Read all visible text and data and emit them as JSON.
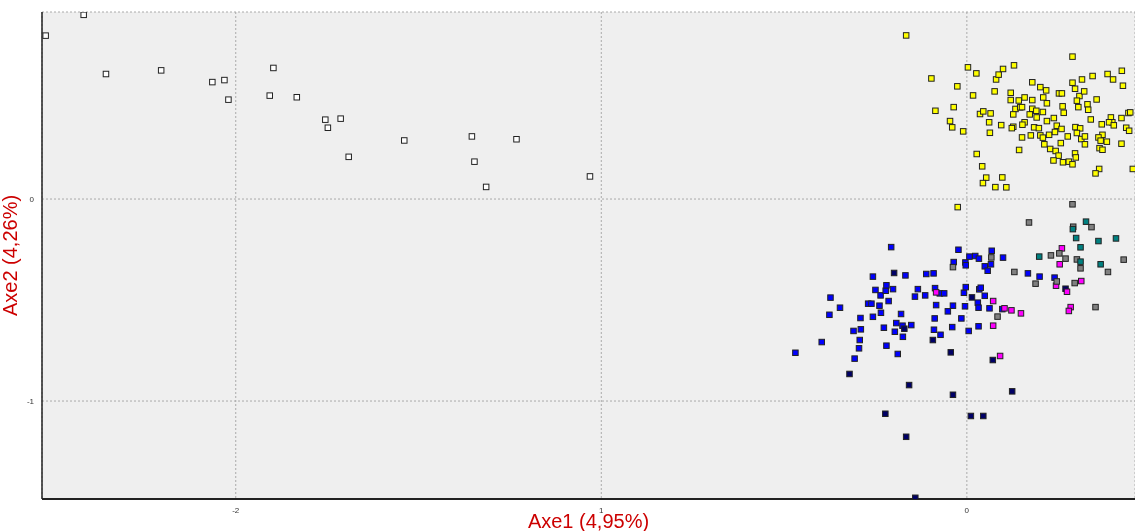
{
  "chart_data": {
    "type": "scatter",
    "xlabel": "Axe1 (4,95%)",
    "ylabel": "Axe2 (4,26%)",
    "xlim": [
      -2.53,
      0.46
    ],
    "ylim": [
      -1.485,
      0.926
    ],
    "xticks": [
      -2,
      {
        "value": -1,
        "label": "1"
      },
      0
    ],
    "yticks": [
      -1,
      0
    ],
    "grid": true,
    "marker": "square",
    "series": [
      {
        "color": "#ffffff",
        "x": [
          -2.52,
          -2.416,
          -2.355,
          -2.204,
          -2.064,
          -2.031,
          -2.02,
          -1.897,
          -1.907,
          -1.833,
          -1.755,
          -1.748,
          -1.713,
          -1.691,
          -1.539,
          -1.354,
          -1.347,
          -1.315,
          -1.232,
          -1.031
        ],
        "values": [
          0.809,
          0.912,
          0.619,
          0.637,
          0.579,
          0.589,
          0.492,
          0.649,
          0.512,
          0.504,
          0.393,
          0.353,
          0.398,
          0.209,
          0.29,
          0.31,
          0.185,
          0.06,
          0.296,
          0.112
        ]
      },
      {
        "color": "#ffff00",
        "x": [
          -0.166,
          -0.097,
          -0.086,
          -0.026,
          -0.036,
          -0.046,
          -0.04,
          -0.01,
          0.003,
          0.026,
          0.017,
          0.08,
          0.087,
          0.099,
          0.129,
          0.076,
          0.036,
          0.045,
          0.065,
          0.061,
          0.063,
          0.094,
          0.027,
          0.042,
          0.053,
          0.044,
          0.078,
          0.097,
          0.108,
          0.12,
          0.12,
          0.142,
          0.158,
          0.179,
          0.179,
          0.133,
          0.146,
          0.151,
          0.127,
          0.127,
          0.123,
          0.158,
          0.152,
          0.172,
          0.179,
          0.19,
          0.191,
          0.201,
          0.217,
          0.209,
          0.219,
          0.208,
          0.219,
          0.238,
          0.184,
          0.197,
          0.151,
          0.143,
          0.175,
          0.201,
          0.208,
          0.212,
          0.225,
          0.241,
          0.246,
          0.259,
          0.228,
          0.243,
          0.251,
          0.237,
          0.257,
          0.276,
          0.263,
          0.279,
          0.289,
          0.296,
          0.298,
          0.252,
          0.26,
          0.262,
          0.265,
          0.289,
          0.289,
          0.296,
          0.308,
          0.301,
          0.305,
          0.315,
          0.321,
          0.344,
          0.33,
          0.332,
          0.355,
          0.339,
          0.297,
          0.31,
          0.301,
          0.313,
          0.323,
          0.323,
          0.385,
          0.4,
          0.424,
          0.427,
          0.369,
          0.371,
          0.36,
          0.366,
          0.383,
          0.363,
          0.371,
          0.362,
          0.352,
          0.394,
          0.398,
          0.389,
          0.402,
          0.423,
          0.442,
          0.447,
          0.436,
          0.444,
          0.423,
          0.454,
          -0.025
        ],
        "values": [
          0.81,
          0.597,
          0.437,
          0.558,
          0.455,
          0.386,
          0.355,
          0.335,
          0.652,
          0.622,
          0.513,
          0.592,
          0.616,
          0.644,
          0.662,
          0.533,
          0.421,
          0.434,
          0.424,
          0.38,
          0.328,
          0.366,
          0.223,
          0.162,
          0.106,
          0.079,
          0.059,
          0.107,
          0.058,
          0.526,
          0.49,
          0.488,
          0.503,
          0.578,
          0.49,
          0.446,
          0.454,
          0.455,
          0.419,
          0.358,
          0.351,
          0.38,
          0.368,
          0.419,
          0.447,
          0.437,
          0.404,
          0.554,
          0.538,
          0.503,
          0.474,
          0.431,
          0.386,
          0.401,
          0.355,
          0.351,
          0.305,
          0.243,
          0.315,
          0.315,
          0.304,
          0.271,
          0.318,
          0.332,
          0.363,
          0.347,
          0.248,
          0.238,
          0.215,
          0.191,
          0.277,
          0.31,
          0.182,
          0.185,
          0.172,
          0.226,
          0.206,
          0.523,
          0.523,
          0.459,
          0.427,
          0.705,
          0.576,
          0.546,
          0.51,
          0.487,
          0.455,
          0.592,
          0.533,
          0.609,
          0.469,
          0.442,
          0.493,
          0.394,
          0.356,
          0.35,
          0.327,
          0.297,
          0.31,
          0.271,
          0.619,
          0.592,
          0.635,
          0.561,
          0.37,
          0.318,
          0.305,
          0.289,
          0.284,
          0.252,
          0.244,
          0.149,
          0.127,
          0.404,
          0.38,
          0.38,
          0.365,
          0.401,
          0.426,
          0.429,
          0.353,
          0.338,
          0.274,
          0.149,
          -0.04
        ]
      },
      {
        "color": "#0000ff",
        "x": [
          -0.469,
          -0.397,
          -0.376,
          -0.373,
          -0.347,
          -0.31,
          -0.307,
          -0.295,
          -0.293,
          -0.291,
          -0.29,
          -0.27,
          -0.261,
          -0.257,
          -0.257,
          -0.25,
          -0.239,
          -0.236,
          -0.235,
          -0.227,
          -0.222,
          -0.22,
          -0.22,
          -0.214,
          -0.207,
          -0.202,
          -0.197,
          -0.193,
          -0.189,
          -0.18,
          -0.176,
          -0.175,
          -0.168,
          -0.152,
          -0.142,
          -0.134,
          -0.114,
          -0.111,
          -0.091,
          -0.09,
          -0.088,
          -0.087,
          -0.084,
          -0.074,
          -0.072,
          -0.062,
          -0.052,
          -0.04,
          -0.038,
          -0.036,
          -0.023,
          -0.015,
          -0.008,
          -0.005,
          -0.004,
          -0.003,
          -0.003,
          0.005,
          0.007,
          0.023,
          0.03,
          0.032,
          0.032,
          0.033,
          0.034,
          0.038,
          0.049,
          0.049,
          0.057,
          0.062,
          0.066,
          0.068,
          0.097,
          0.099,
          0.167,
          0.199,
          0.24
        ],
        "values": [
          -0.761,
          -0.708,
          -0.573,
          -0.488,
          -0.538,
          -0.653,
          -0.79,
          -0.739,
          -0.698,
          -0.589,
          -0.645,
          -0.518,
          -0.518,
          -0.384,
          -0.583,
          -0.45,
          -0.528,
          -0.477,
          -0.563,
          -0.637,
          -0.454,
          -0.427,
          -0.726,
          -0.505,
          -0.238,
          -0.446,
          -0.657,
          -0.614,
          -0.767,
          -0.569,
          -0.627,
          -0.682,
          -0.378,
          -0.624,
          -0.483,
          -0.446,
          -0.477,
          -0.371,
          -0.368,
          -0.647,
          -0.591,
          -0.441,
          -0.525,
          -0.467,
          -0.672,
          -0.467,
          -0.556,
          -0.634,
          -0.528,
          -0.312,
          -0.251,
          -0.591,
          -0.464,
          -0.531,
          -0.314,
          -0.328,
          -0.436,
          -0.653,
          -0.285,
          -0.282,
          -0.513,
          -0.538,
          -0.63,
          -0.295,
          -0.447,
          -0.439,
          -0.333,
          -0.479,
          -0.355,
          -0.541,
          -0.323,
          -0.256,
          -0.545,
          -0.29,
          -0.368,
          -0.384,
          -0.389
        ]
      },
      {
        "color": "#000066",
        "x": [
          -0.321,
          -0.199,
          -0.171,
          -0.158,
          -0.223,
          -0.166,
          -0.141,
          -0.093,
          -0.044,
          -0.038,
          0.014,
          0.011,
          0.045,
          0.071,
          0.124,
          0.27
        ],
        "values": [
          -0.866,
          -0.366,
          -0.642,
          -0.921,
          -1.063,
          -1.177,
          -1.479,
          -0.698,
          -0.759,
          -0.969,
          -0.487,
          -1.074,
          -1.074,
          -0.797,
          -0.952,
          -0.444
        ]
      },
      {
        "color": "#ff00ff",
        "x": [
          -0.084,
          0.072,
          0.072,
          0.091,
          0.103,
          0.122,
          0.148,
          0.244,
          0.254,
          0.26,
          0.274,
          0.284,
          0.279,
          0.313
        ],
        "values": [
          -0.462,
          -0.505,
          -0.627,
          -0.777,
          -0.541,
          -0.551,
          -0.566,
          -0.429,
          -0.323,
          -0.244,
          -0.459,
          -0.535,
          -0.554,
          -0.406
        ]
      },
      {
        "color": "#808080",
        "x": [
          -0.038,
          0.067,
          0.084,
          0.13,
          0.17,
          0.188,
          0.23,
          0.253,
          0.246,
          0.27,
          0.289,
          0.291,
          0.295,
          0.301,
          0.311,
          0.341,
          0.352,
          0.386,
          0.429
        ],
        "values": [
          -0.337,
          -0.289,
          -0.582,
          -0.361,
          -0.116,
          -0.419,
          -0.279,
          -0.269,
          -0.408,
          -0.295,
          -0.026,
          -0.137,
          -0.416,
          -0.299,
          -0.343,
          -0.139,
          -0.535,
          -0.361,
          -0.3
        ]
      },
      {
        "color": "#008080",
        "x": [
          0.198,
          0.29,
          0.299,
          0.311,
          0.311,
          0.326,
          0.36,
          0.366,
          0.408
        ],
        "values": [
          -0.285,
          -0.149,
          -0.193,
          -0.239,
          -0.31,
          -0.112,
          -0.208,
          -0.323,
          -0.195
        ]
      }
    ]
  }
}
